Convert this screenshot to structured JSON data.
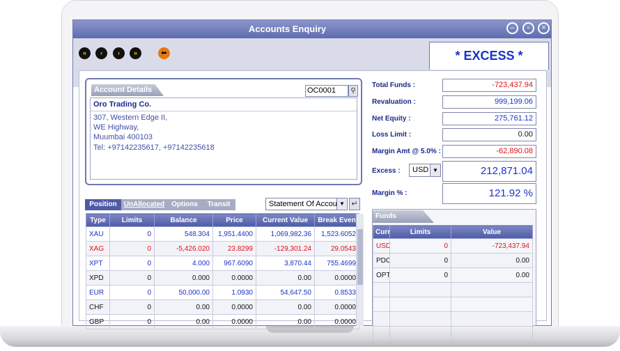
{
  "window": {
    "title": "Accounts Enquiry"
  },
  "toolbar": {
    "nav": [
      {
        "name": "first-record-button",
        "glyph": "«"
      },
      {
        "name": "prev-record-button",
        "glyph": "‹"
      },
      {
        "name": "next-record-button",
        "glyph": "›"
      },
      {
        "name": "last-record-button",
        "glyph": "»"
      }
    ],
    "home_glyph": "⬅"
  },
  "banner": {
    "excess_text": "* EXCESS *"
  },
  "account": {
    "tab_label": "Account Details",
    "id": "OC0001",
    "name": "Oro Trading Co.",
    "address": [
      "307, Western Edge II,",
      "WE Highway,",
      "Muumbai 400103",
      "Tel:   +97142235617, +97142235618"
    ]
  },
  "summary": {
    "total_funds": {
      "label": "Total Funds :",
      "value": "-723,437.94",
      "color": "#e0101a"
    },
    "revaluation": {
      "label": "Revaluation :",
      "value": "999,199.06",
      "color": "#1b33c9"
    },
    "net_equity": {
      "label": "Net Equity :",
      "value": "275,761.12",
      "color": "#1b33c9"
    },
    "loss_limit": {
      "label": "Loss Limit :",
      "value": "0.00",
      "color": "#111111"
    },
    "margin_amt": {
      "label": "Margin Amt @ 5.0% :",
      "value": "-62,890.08",
      "color": "#e0101a"
    },
    "excess": {
      "label": "Excess :",
      "currency": "USD",
      "value": "212,871.04"
    },
    "margin_pct": {
      "label": "Margin % :",
      "value": "121.92 %"
    }
  },
  "positions": {
    "tabs": [
      "Position",
      "UnAllocated",
      "Options",
      "Transit"
    ],
    "statement_select": "Statement Of Account",
    "headers": [
      "Type",
      "Limits",
      "Balance",
      "Price",
      "Current Value",
      "Break Even"
    ],
    "rows": [
      {
        "cells": [
          "XAU",
          "0",
          "548.304",
          "1,951.4400",
          "1,069,982.36",
          "1,523.6052"
        ],
        "color": "#1b33c9"
      },
      {
        "cells": [
          "XAG",
          "0",
          "-5,426.020",
          "23.8299",
          "-129,301.24",
          "29.0543"
        ],
        "color": "#e0101a"
      },
      {
        "cells": [
          "XPT",
          "0",
          "4.000",
          "967.6090",
          "3,870.44",
          "755.4699"
        ],
        "color": "#1b33c9"
      },
      {
        "cells": [
          "XPD",
          "0",
          "0.000",
          "0.0000",
          "0.00",
          "0.0000"
        ],
        "color": "#111111"
      },
      {
        "cells": [
          "EUR",
          "0",
          "50,000.00",
          "1.0930",
          "54,647.50",
          "0.8533"
        ],
        "color": "#1b33c9"
      },
      {
        "cells": [
          "CHF",
          "0",
          "0.00",
          "0.0000",
          "0.00",
          "0.0000"
        ],
        "color": "#111111"
      },
      {
        "cells": [
          "GBP",
          "0",
          "0.00",
          "0.0000",
          "0.00",
          "0.0000"
        ],
        "color": "#111111"
      }
    ]
  },
  "funds": {
    "tab_label": "Funds",
    "headers": [
      "Curr",
      "Limits",
      "Value"
    ],
    "rows": [
      {
        "cells": [
          "USD",
          "0",
          "-723,437.94"
        ],
        "color": "#e0101a"
      },
      {
        "cells": [
          "PDC",
          "0",
          "0.00"
        ],
        "color": "#111111"
      },
      {
        "cells": [
          "OPT",
          "0",
          "0.00"
        ],
        "color": "#111111"
      },
      {
        "cells": [
          "",
          "",
          ""
        ],
        "color": "#111111"
      },
      {
        "cells": [
          "",
          "",
          ""
        ],
        "color": "#111111"
      },
      {
        "cells": [
          "",
          "",
          ""
        ],
        "color": "#111111"
      },
      {
        "cells": [
          "",
          "",
          ""
        ],
        "color": "#111111"
      }
    ]
  }
}
